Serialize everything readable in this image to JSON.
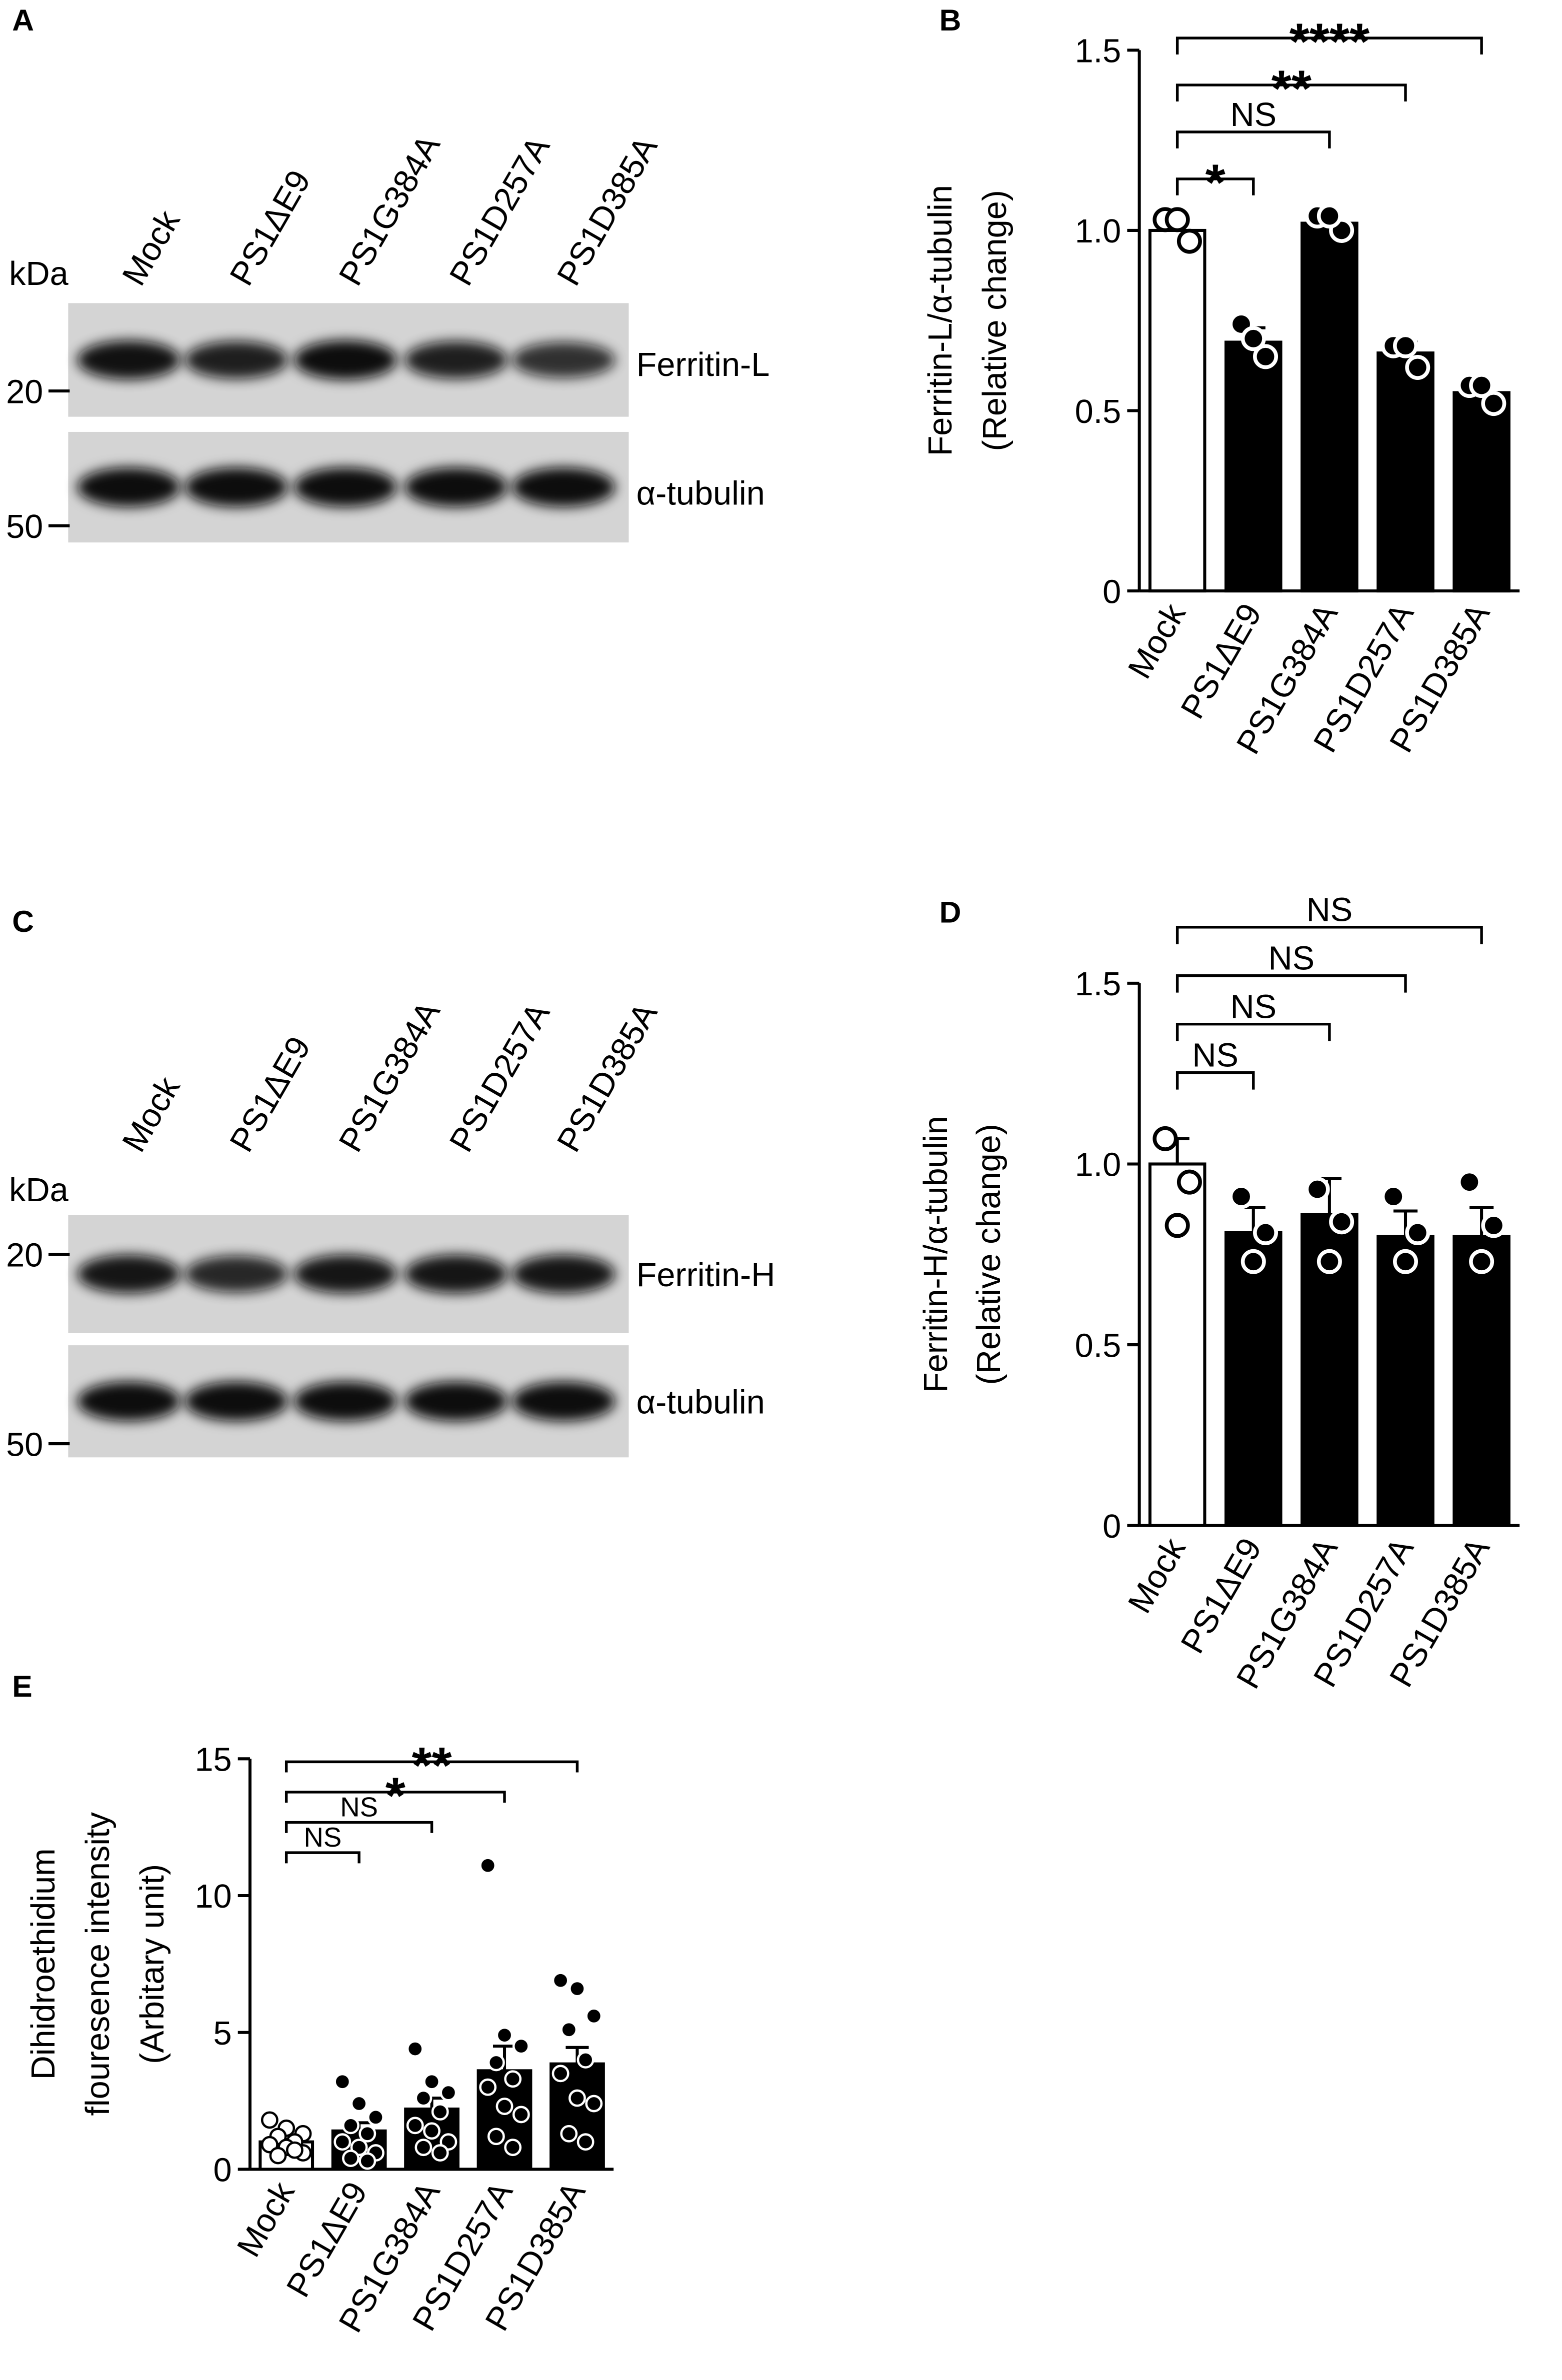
{
  "blots": [
    {
      "panel": "A",
      "unit": "kDa",
      "lanes": [
        "Mock",
        "PS1ΔE9",
        "PS1G384A",
        "PS1D257A",
        "PS1D385A"
      ],
      "markers": [
        "20",
        "50"
      ],
      "bands": [
        "Ferritin-L",
        "α-tubulin"
      ]
    },
    {
      "panel": "C",
      "unit": "kDa",
      "lanes": [
        "Mock",
        "PS1ΔE9",
        "PS1G384A",
        "PS1D257A",
        "PS1D385A"
      ],
      "markers": [
        "20",
        "50"
      ],
      "bands": [
        "Ferritin-H",
        "α-tubulin"
      ]
    }
  ],
  "chart_data": [
    {
      "type": "bar",
      "panel": "B",
      "ylabel": [
        "Ferritin-L/α-tubulin",
        "(Relative change)"
      ],
      "categories": [
        "Mock",
        "PS1ΔE9",
        "PS1G384A",
        "PS1D257A",
        "PS1D385A"
      ],
      "values": [
        1.0,
        0.69,
        1.02,
        0.66,
        0.55
      ],
      "errors": [
        0.03,
        0.04,
        0.02,
        0.03,
        0.02
      ],
      "points": [
        [
          1.03,
          0.97,
          1.03
        ],
        [
          0.74,
          0.65,
          0.7
        ],
        [
          1.04,
          1.0,
          1.04
        ],
        [
          0.68,
          0.62,
          0.68
        ],
        [
          0.57,
          0.52,
          0.57
        ]
      ],
      "colors": [
        "#ffffff",
        "#000000",
        "#000000",
        "#000000",
        "#000000"
      ],
      "edgecolor": "#000000",
      "ylim": [
        0,
        1.5
      ],
      "yticks": [
        0,
        0.5,
        {
          "value": 1,
          "label": "1.0"
        },
        1.5
      ],
      "brackets": [
        {
          "compare": [
            "Mock",
            "PS1ΔE9"
          ],
          "label": "*"
        },
        {
          "compare": [
            "Mock",
            "PS1G384A"
          ],
          "label": "NS"
        },
        {
          "compare": [
            "Mock",
            "PS1D257A"
          ],
          "label": "**"
        },
        {
          "compare": [
            "Mock",
            "PS1D385A"
          ],
          "label": "****"
        }
      ]
    },
    {
      "type": "bar",
      "panel": "D",
      "ylabel": [
        "Ferritin-H/α-tubulin",
        "(Relative change)"
      ],
      "categories": [
        "Mock",
        "PS1ΔE9",
        "PS1G384A",
        "PS1D257A",
        "PS1D385A"
      ],
      "values": [
        1.0,
        0.81,
        0.86,
        0.8,
        0.8
      ],
      "errors": [
        0.07,
        0.07,
        0.1,
        0.07,
        0.08
      ],
      "points": [
        [
          1.07,
          0.95,
          0.83
        ],
        [
          0.91,
          0.81,
          0.73
        ],
        [
          0.93,
          0.84,
          0.73
        ],
        [
          0.91,
          0.81,
          0.73
        ],
        [
          0.95,
          0.83,
          0.73
        ]
      ],
      "colors": [
        "#ffffff",
        "#000000",
        "#000000",
        "#000000",
        "#000000"
      ],
      "edgecolor": "#000000",
      "ylim": [
        0,
        1.5
      ],
      "yticks": [
        0,
        0.5,
        {
          "value": 1,
          "label": "1.0"
        },
        1.5
      ],
      "brackets": [
        {
          "compare": [
            "Mock",
            "PS1ΔE9"
          ],
          "label": "NS"
        },
        {
          "compare": [
            "Mock",
            "PS1G384A"
          ],
          "label": "NS"
        },
        {
          "compare": [
            "Mock",
            "PS1D257A"
          ],
          "label": "NS"
        },
        {
          "compare": [
            "Mock",
            "PS1D385A"
          ],
          "label": "NS"
        }
      ]
    },
    {
      "type": "bar",
      "panel": "E",
      "ylabel": [
        "Dihidroethidium",
        "flouresence intensity",
        "(Arbitary unit)"
      ],
      "categories": [
        "Mock",
        "PS1ΔE9",
        "PS1G384A",
        "PS1D257A",
        "PS1D385A"
      ],
      "values": [
        1.0,
        1.4,
        2.2,
        3.6,
        3.85
      ],
      "errors": [
        0.1,
        0.3,
        0.4,
        0.9,
        0.6
      ],
      "points": [
        [
          1.8,
          1.5,
          1.3,
          1.2,
          1.0,
          0.9,
          0.8,
          0.6,
          0.5,
          0.7
        ],
        [
          3.2,
          2.4,
          1.9,
          1.6,
          1.3,
          1.0,
          0.8,
          0.6,
          0.4,
          0.3
        ],
        [
          4.4,
          3.2,
          2.8,
          2.6,
          2.1,
          1.6,
          1.4,
          1.0,
          0.8,
          0.6
        ],
        [
          11.1,
          4.9,
          4.5,
          3.9,
          3.3,
          3.0,
          2.3,
          2.0,
          1.2,
          0.8
        ],
        [
          6.9,
          6.6,
          5.6,
          5.1,
          4.0,
          3.5,
          2.6,
          2.4,
          1.3,
          1.0
        ]
      ],
      "colors": [
        "#ffffff",
        "#000000",
        "#000000",
        "#000000",
        "#000000"
      ],
      "edgecolor": "#000000",
      "ylim": [
        0,
        15
      ],
      "yticks": [
        0,
        5,
        10,
        15
      ],
      "brackets": [
        {
          "compare": [
            "Mock",
            "PS1ΔE9"
          ],
          "label": "NS"
        },
        {
          "compare": [
            "Mock",
            "PS1G384A"
          ],
          "label": "NS"
        },
        {
          "compare": [
            "Mock",
            "PS1D257A"
          ],
          "label": "*"
        },
        {
          "compare": [
            "Mock",
            "PS1D385A"
          ],
          "label": "**"
        }
      ]
    }
  ]
}
